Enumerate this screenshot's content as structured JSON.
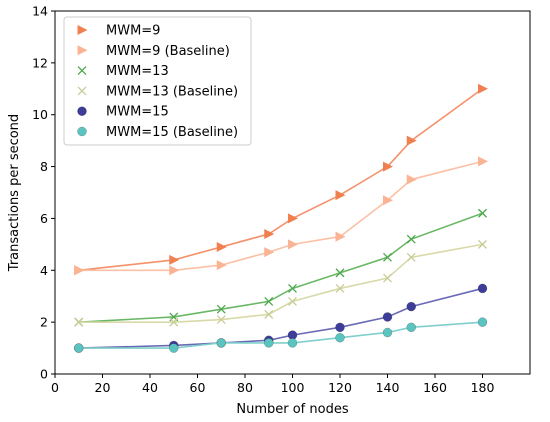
{
  "chart_data": {
    "type": "line",
    "title": "",
    "xlabel": "Number of nodes",
    "ylabel": "Transactions per second",
    "xlim": [
      0,
      200
    ],
    "ylim": [
      0,
      14
    ],
    "xticks": [
      0,
      20,
      40,
      60,
      80,
      100,
      120,
      140,
      160,
      180
    ],
    "yticks": [
      0,
      2,
      4,
      6,
      8,
      10,
      12,
      14
    ],
    "grid": false,
    "legend_position": "top-left",
    "x": [
      10,
      50,
      70,
      90,
      100,
      120,
      140,
      150,
      180
    ],
    "series": [
      {
        "name": "MWM=9",
        "marker": "triangle-right",
        "line_color": "#f5916a",
        "marker_color": "#f08050",
        "values": [
          4.0,
          4.4,
          4.9,
          5.4,
          6.0,
          6.9,
          8.0,
          9.0,
          11.0
        ]
      },
      {
        "name": "MWM=9 (Baseline)",
        "marker": "triangle-right",
        "line_color": "#fbc0a5",
        "marker_color": "#fab393",
        "values": [
          4.0,
          4.0,
          4.2,
          4.7,
          5.0,
          5.3,
          6.7,
          7.5,
          8.2
        ]
      },
      {
        "name": "MWM=13",
        "marker": "x",
        "line_color": "#6ab866",
        "marker_color": "#4ca84a",
        "values": [
          2.0,
          2.2,
          2.5,
          2.8,
          3.3,
          3.9,
          4.5,
          5.2,
          6.2
        ]
      },
      {
        "name": "MWM=13 (Baseline)",
        "marker": "x",
        "line_color": "#d8d9a8",
        "marker_color": "#c8cc94",
        "values": [
          2.0,
          2.0,
          2.1,
          2.3,
          2.8,
          3.3,
          3.7,
          4.5,
          5.0
        ]
      },
      {
        "name": "MWM=15",
        "marker": "circle",
        "line_color": "#6a6ab4",
        "marker_color": "#3c3c99",
        "values": [
          1.0,
          1.1,
          1.2,
          1.3,
          1.5,
          1.8,
          2.2,
          2.6,
          3.3
        ]
      },
      {
        "name": "MWM=15 (Baseline)",
        "marker": "circle",
        "line_color": "#7fd0cc",
        "marker_color": "#5cc4c0",
        "values": [
          1.0,
          1.0,
          1.2,
          1.2,
          1.2,
          1.4,
          1.6,
          1.8,
          2.0
        ]
      }
    ]
  }
}
